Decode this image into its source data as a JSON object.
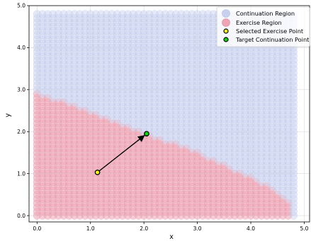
{
  "chart_data": {
    "type": "scatter",
    "xlabel": "x",
    "ylabel": "y",
    "xlim": [
      -0.15,
      5.1
    ],
    "ylim": [
      -0.15,
      5.0
    ],
    "xticks": [
      "0.0",
      "1.0",
      "2.0",
      "3.0",
      "4.0",
      "5.0"
    ],
    "yticks": [
      "0.0",
      "1.0",
      "2.0",
      "3.0",
      "4.0",
      "5.0"
    ],
    "grid": true,
    "legend_position": "top-right",
    "grid_step": 0.1,
    "grid_range": [
      0,
      4.8
    ],
    "boundary": {
      "x": [
        0.0,
        0.5,
        1.0,
        1.5,
        2.0,
        2.5,
        3.0,
        3.5,
        4.0,
        4.3,
        4.5,
        4.7,
        4.8
      ],
      "y": [
        2.9,
        2.7,
        2.45,
        2.2,
        1.97,
        1.75,
        1.5,
        1.2,
        0.9,
        0.7,
        0.5,
        0.3,
        0.0
      ]
    },
    "series": [
      {
        "name": "Continuation Region",
        "color": "#c7d0ee",
        "edge": "#b3bde6"
      },
      {
        "name": "Exercise Region",
        "color": "#eea4b5",
        "edge": "#d88c9c"
      },
      {
        "name": "Selected Exercise Point",
        "color": "#ffff00",
        "edge": "#000000",
        "points": [
          [
            1.13,
            1.03
          ]
        ]
      },
      {
        "name": "Target Continuation Point",
        "color": "#00dd00",
        "edge": "#000000",
        "points": [
          [
            2.05,
            1.95
          ]
        ]
      }
    ],
    "arrow": {
      "from": [
        1.13,
        1.03
      ],
      "to": [
        2.05,
        1.95
      ]
    }
  }
}
